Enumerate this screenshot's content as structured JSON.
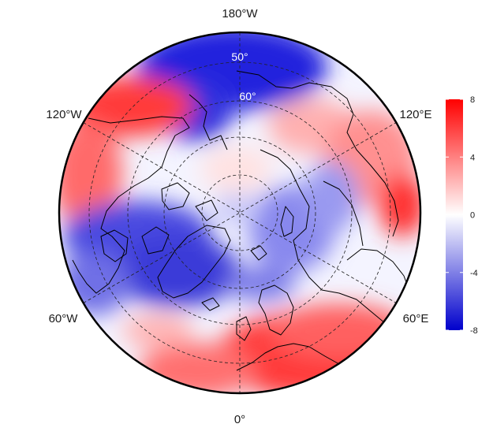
{
  "map": {
    "projection": "north-polar-stereographic",
    "lon_labels": {
      "top": "180°W",
      "bottom": "0°",
      "upper_left": "120°W",
      "upper_right": "120°E",
      "lower_left": "60°W",
      "lower_right": "60°E"
    },
    "lat_labels": {
      "outer": "50°",
      "inner": "60°"
    },
    "colors": {
      "positive": "#ff0000",
      "neutral": "#ffffff",
      "negative": "#0000cc",
      "coast": "#000000"
    }
  },
  "colorbar": {
    "min": -8,
    "max": 8,
    "ticks": [
      "8",
      "4",
      "0",
      "-4",
      "-8"
    ]
  }
}
